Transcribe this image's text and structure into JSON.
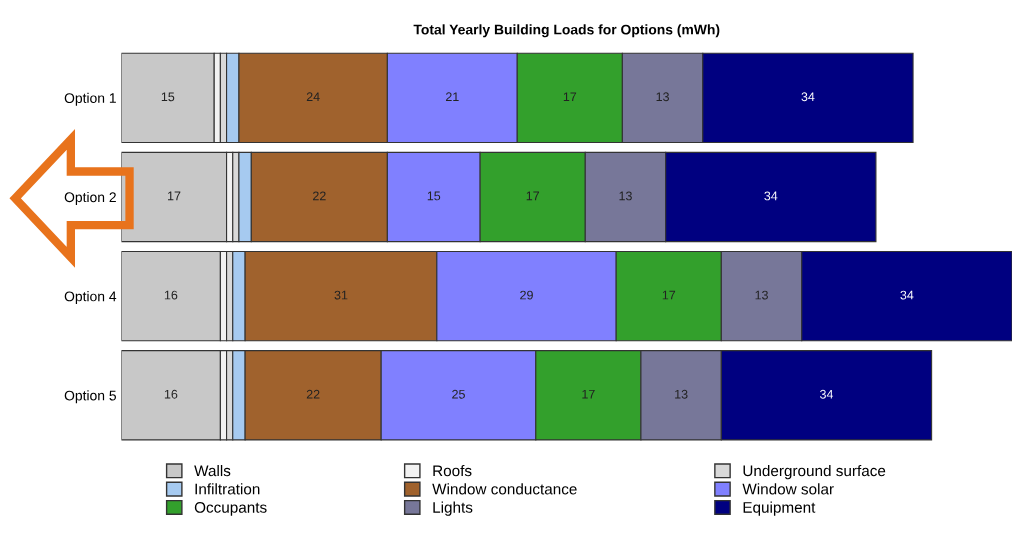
{
  "chart_data": {
    "type": "bar",
    "orientation": "horizontal",
    "stacked": true,
    "title": "Total Yearly Building Loads for Options (mWh)",
    "categories": [
      "Option 1",
      "Option 2",
      "Option 4",
      "Option 5"
    ],
    "series": [
      {
        "name": "Walls",
        "color": "#c8c8c8",
        "values": [
          15,
          17,
          16,
          16
        ],
        "value_labels": [
          "15",
          "17",
          "16",
          "16"
        ]
      },
      {
        "name": "Roofs",
        "color": "#f2f2f2",
        "values": [
          1,
          1,
          1,
          1
        ],
        "value_labels": [
          null,
          null,
          null,
          null
        ]
      },
      {
        "name": "Underground surface",
        "color": "#d9d9d9",
        "values": [
          1,
          1,
          1,
          1
        ],
        "value_labels": [
          null,
          null,
          null,
          null
        ]
      },
      {
        "name": "Infiltration",
        "color": "#a6caf0",
        "values": [
          2,
          2,
          2,
          2
        ],
        "value_labels": [
          null,
          null,
          null,
          null
        ]
      },
      {
        "name": "Window conductance",
        "color": "#a0622d",
        "values": [
          24,
          22,
          31,
          22
        ],
        "value_labels": [
          "24",
          "22",
          "31",
          "22"
        ]
      },
      {
        "name": "Window solar",
        "color": "#8080ff",
        "values": [
          21,
          15,
          29,
          25
        ],
        "value_labels": [
          "21",
          "15",
          "29",
          "25"
        ]
      },
      {
        "name": "Occupants",
        "color": "#33a02c",
        "values": [
          17,
          17,
          17,
          17
        ],
        "value_labels": [
          "17",
          "17",
          "17",
          "17"
        ]
      },
      {
        "name": "Lights",
        "color": "#777799",
        "values": [
          13,
          13,
          13,
          13
        ],
        "value_labels": [
          "13",
          "13",
          "13",
          "13"
        ]
      },
      {
        "name": "Equipment",
        "color": "#000080",
        "values": [
          34,
          34,
          34,
          34
        ],
        "value_labels": [
          "34",
          "34",
          "34",
          "34"
        ]
      }
    ],
    "legend": "bottom",
    "grid": false,
    "tick_labels": "y"
  }
}
